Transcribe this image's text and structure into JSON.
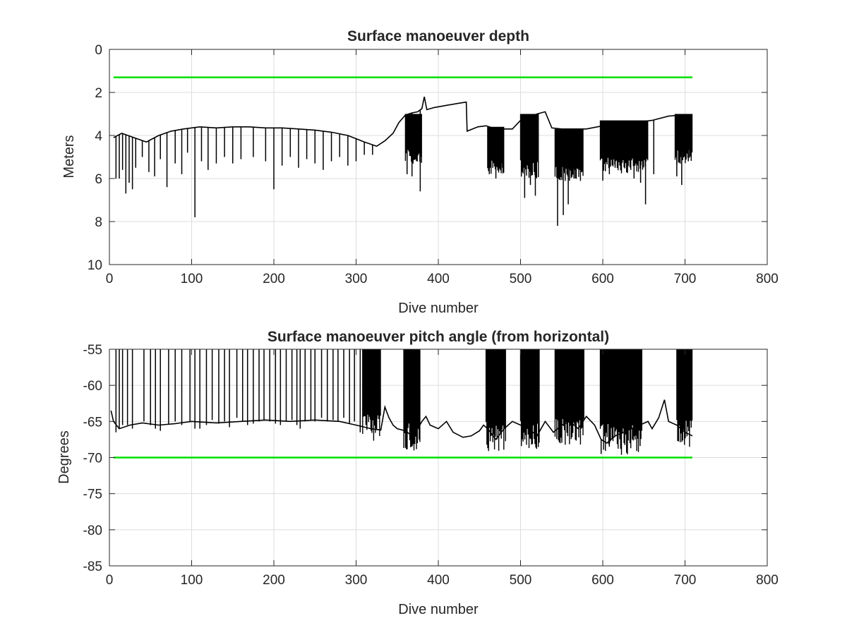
{
  "chart_data": [
    {
      "type": "line",
      "title": "Surface manoeuver depth",
      "xlabel": "Dive number",
      "ylabel": "Meters",
      "xlim": [
        0,
        800
      ],
      "ylim": [
        0,
        10
      ],
      "y_reversed": true,
      "grid": true,
      "xticks": [
        "0",
        "100",
        "200",
        "300",
        "400",
        "500",
        "600",
        "700",
        "800"
      ],
      "yticks": [
        "0",
        "2",
        "4",
        "6",
        "8",
        "10"
      ],
      "colors": {
        "data": "#000000",
        "threshold": "#00e000"
      },
      "threshold": {
        "y": 1.3,
        "x": [
          5,
          709
        ]
      },
      "baseline": [
        [
          5,
          4.1
        ],
        [
          15,
          3.9
        ],
        [
          30,
          4.1
        ],
        [
          45,
          4.3
        ],
        [
          60,
          4.0
        ],
        [
          75,
          3.8
        ],
        [
          90,
          3.7
        ],
        [
          110,
          3.6
        ],
        [
          130,
          3.65
        ],
        [
          150,
          3.6
        ],
        [
          170,
          3.6
        ],
        [
          190,
          3.65
        ],
        [
          210,
          3.65
        ],
        [
          230,
          3.7
        ],
        [
          250,
          3.75
        ],
        [
          270,
          3.85
        ],
        [
          290,
          4.0
        ],
        [
          310,
          4.3
        ],
        [
          325,
          4.5
        ],
        [
          335,
          4.25
        ],
        [
          345,
          3.9
        ],
        [
          352,
          3.4
        ],
        [
          360,
          3.05
        ],
        [
          368,
          2.95
        ],
        [
          375,
          2.9
        ],
        [
          380,
          2.75
        ],
        [
          383,
          2.2
        ],
        [
          386,
          2.8
        ],
        [
          395,
          2.7
        ],
        [
          410,
          2.6
        ],
        [
          425,
          2.5
        ],
        [
          434,
          2.45
        ],
        [
          435,
          3.8
        ],
        [
          448,
          3.6
        ],
        [
          458,
          3.55
        ],
        [
          470,
          3.7
        ],
        [
          490,
          3.7
        ],
        [
          500,
          3.3
        ],
        [
          520,
          3.0
        ],
        [
          530,
          2.9
        ],
        [
          538,
          3.65
        ],
        [
          550,
          3.7
        ],
        [
          580,
          3.7
        ],
        [
          600,
          3.55
        ],
        [
          620,
          3.45
        ],
        [
          640,
          3.4
        ],
        [
          660,
          3.3
        ],
        [
          680,
          3.1
        ],
        [
          695,
          3.05
        ],
        [
          709,
          3.1
        ]
      ],
      "spikes": [
        [
          8,
          6.0
        ],
        [
          12,
          6.0
        ],
        [
          16,
          5.6
        ],
        [
          20,
          6.7
        ],
        [
          24,
          6.2
        ],
        [
          28,
          6.5
        ],
        [
          32,
          5.5
        ],
        [
          40,
          5.0
        ],
        [
          48,
          5.7
        ],
        [
          55,
          5.9
        ],
        [
          62,
          5.1
        ],
        [
          70,
          6.4
        ],
        [
          80,
          5.3
        ],
        [
          88,
          5.8
        ],
        [
          95,
          4.8
        ],
        [
          104,
          7.8
        ],
        [
          112,
          5.2
        ],
        [
          120,
          5.6
        ],
        [
          130,
          5.3
        ],
        [
          140,
          5.0
        ],
        [
          150,
          5.3
        ],
        [
          160,
          5.1
        ],
        [
          175,
          5.0
        ],
        [
          190,
          5.2
        ],
        [
          200,
          6.5
        ],
        [
          210,
          5.4
        ],
        [
          220,
          5.0
        ],
        [
          230,
          5.5
        ],
        [
          240,
          5.1
        ],
        [
          250,
          5.3
        ],
        [
          260,
          5.6
        ],
        [
          270,
          5.2
        ],
        [
          280,
          5.0
        ],
        [
          290,
          5.4
        ],
        [
          300,
          5.2
        ],
        [
          310,
          4.9
        ],
        [
          320,
          4.9
        ],
        [
          362,
          5.8
        ],
        [
          368,
          5.9
        ],
        [
          378,
          6.6
        ],
        [
          462,
          5.8
        ],
        [
          470,
          6.0
        ],
        [
          478,
          5.5
        ],
        [
          505,
          6.9
        ],
        [
          512,
          6.3
        ],
        [
          518,
          6.8
        ],
        [
          545,
          8.2
        ],
        [
          552,
          7.7
        ],
        [
          558,
          7.2
        ],
        [
          565,
          6.0
        ],
        [
          572,
          5.6
        ],
        [
          600,
          6.1
        ],
        [
          608,
          5.8
        ],
        [
          615,
          5.5
        ],
        [
          622,
          5.6
        ],
        [
          630,
          5.7
        ],
        [
          638,
          6.0
        ],
        [
          646,
          6.2
        ],
        [
          652,
          7.2
        ],
        [
          662,
          5.8
        ],
        [
          690,
          5.9
        ],
        [
          696,
          6.3
        ],
        [
          704,
          5.2
        ]
      ],
      "dense_bands": [
        {
          "x": [
            360,
            380
          ],
          "top": 3.0,
          "bottom": 5.0
        },
        {
          "x": [
            460,
            480
          ],
          "top": 3.6,
          "bottom": 5.5
        },
        {
          "x": [
            500,
            522
          ],
          "top": 3.0,
          "bottom": 5.6
        },
        {
          "x": [
            542,
            577
          ],
          "top": 3.7,
          "bottom": 5.8
        },
        {
          "x": [
            597,
            655
          ],
          "top": 3.3,
          "bottom": 5.4
        },
        {
          "x": [
            688,
            709
          ],
          "top": 3.0,
          "bottom": 5.0
        }
      ]
    },
    {
      "type": "line",
      "title": "Surface manoeuver pitch angle (from horizontal)",
      "xlabel": "Dive number",
      "ylabel": "Degrees",
      "xlim": [
        0,
        800
      ],
      "ylim": [
        -85,
        -55
      ],
      "grid": true,
      "xticks": [
        "0",
        "100",
        "200",
        "300",
        "400",
        "500",
        "600",
        "700",
        "800"
      ],
      "yticks": [
        "-55",
        "-60",
        "-65",
        "-70",
        "-75",
        "-80",
        "-85"
      ],
      "colors": {
        "data": "#000000",
        "threshold": "#00e000"
      },
      "threshold": {
        "y": -70,
        "x": [
          5,
          709
        ]
      },
      "baseline": [
        [
          2,
          -63.5
        ],
        [
          5,
          -65.0
        ],
        [
          12,
          -66.0
        ],
        [
          25,
          -65.5
        ],
        [
          40,
          -65.2
        ],
        [
          60,
          -65.5
        ],
        [
          80,
          -65.3
        ],
        [
          100,
          -65.0
        ],
        [
          130,
          -65.2
        ],
        [
          160,
          -65.0
        ],
        [
          190,
          -64.8
        ],
        [
          220,
          -65.0
        ],
        [
          250,
          -64.8
        ],
        [
          280,
          -65.0
        ],
        [
          300,
          -65.5
        ],
        [
          318,
          -66.0
        ],
        [
          330,
          -66.2
        ],
        [
          335,
          -63.0
        ],
        [
          340,
          -64.5
        ],
        [
          345,
          -65.5
        ],
        [
          350,
          -66.0
        ],
        [
          360,
          -66.3
        ],
        [
          368,
          -67.0
        ],
        [
          375,
          -66.0
        ],
        [
          380,
          -65.0
        ],
        [
          385,
          -64.3
        ],
        [
          390,
          -65.5
        ],
        [
          400,
          -66.0
        ],
        [
          410,
          -65.0
        ],
        [
          418,
          -66.5
        ],
        [
          430,
          -67.2
        ],
        [
          440,
          -67.0
        ],
        [
          450,
          -66.3
        ],
        [
          455,
          -65.5
        ],
        [
          460,
          -66.0
        ],
        [
          470,
          -67.5
        ],
        [
          480,
          -66.0
        ],
        [
          490,
          -65.0
        ],
        [
          500,
          -65.5
        ],
        [
          510,
          -66.0
        ],
        [
          520,
          -67.0
        ],
        [
          530,
          -65.0
        ],
        [
          540,
          -66.5
        ],
        [
          550,
          -65.5
        ],
        [
          560,
          -65.0
        ],
        [
          570,
          -66.0
        ],
        [
          580,
          -64.3
        ],
        [
          590,
          -65.5
        ],
        [
          598,
          -67.5
        ],
        [
          605,
          -68.0
        ],
        [
          615,
          -67.0
        ],
        [
          625,
          -66.5
        ],
        [
          635,
          -66.0
        ],
        [
          645,
          -65.5
        ],
        [
          655,
          -65.0
        ],
        [
          660,
          -66.0
        ],
        [
          668,
          -64.5
        ],
        [
          675,
          -62.0
        ],
        [
          680,
          -65.0
        ],
        [
          690,
          -65.5
        ],
        [
          700,
          -66.5
        ],
        [
          709,
          -67.0
        ]
      ],
      "spikes": [
        [
          8,
          -66.5
        ],
        [
          12,
          -66.0
        ],
        [
          16,
          -65.5
        ],
        [
          22,
          -65.5
        ],
        [
          28,
          -66.0
        ],
        [
          42,
          -65.0
        ],
        [
          50,
          -65.5
        ],
        [
          56,
          -66.0
        ],
        [
          62,
          -66.3
        ],
        [
          72,
          -65.3
        ],
        [
          80,
          -65.0
        ],
        [
          88,
          -65.5
        ],
        [
          98,
          -65.0
        ],
        [
          104,
          -66.0
        ],
        [
          110,
          -66.0
        ],
        [
          118,
          -65.5
        ],
        [
          125,
          -64.8
        ],
        [
          133,
          -65.3
        ],
        [
          140,
          -65.0
        ],
        [
          146,
          -65.8
        ],
        [
          155,
          -64.5
        ],
        [
          162,
          -65.0
        ],
        [
          168,
          -65.5
        ],
        [
          175,
          -65.3
        ],
        [
          182,
          -65.0
        ],
        [
          188,
          -64.8
        ],
        [
          195,
          -65.0
        ],
        [
          202,
          -65.3
        ],
        [
          208,
          -65.5
        ],
        [
          215,
          -65.0
        ],
        [
          222,
          -64.8
        ],
        [
          228,
          -65.5
        ],
        [
          232,
          -66.0
        ],
        [
          238,
          -65.0
        ],
        [
          245,
          -64.8
        ],
        [
          250,
          -65.0
        ],
        [
          258,
          -64.5
        ],
        [
          265,
          -65.0
        ],
        [
          272,
          -64.8
        ],
        [
          278,
          -65.0
        ],
        [
          285,
          -64.5
        ],
        [
          292,
          -65.3
        ],
        [
          298,
          -65.0
        ],
        [
          305,
          -66.5
        ],
        [
          312,
          -65.5
        ],
        [
          318,
          -66.0
        ],
        [
          325,
          -66.2
        ]
      ],
      "dense_bands": [
        {
          "x": [
            308,
            330
          ],
          "top": -55,
          "bottom": -66.0
        },
        {
          "x": [
            358,
            378
          ],
          "top": -55,
          "bottom": -67.0
        },
        {
          "x": [
            458,
            482
          ],
          "top": -55,
          "bottom": -67.0
        },
        {
          "x": [
            500,
            523
          ],
          "top": -55,
          "bottom": -67.0
        },
        {
          "x": [
            542,
            578
          ],
          "top": -55,
          "bottom": -66.5
        },
        {
          "x": [
            597,
            648
          ],
          "top": -55,
          "bottom": -67.5
        },
        {
          "x": [
            690,
            709
          ],
          "top": -55,
          "bottom": -66.5
        }
      ],
      "extremes": [
        [
          598,
          -69.5
        ],
        [
          608,
          -68.5
        ],
        [
          618,
          -68.0
        ],
        [
          636,
          -67.5
        ]
      ]
    }
  ]
}
